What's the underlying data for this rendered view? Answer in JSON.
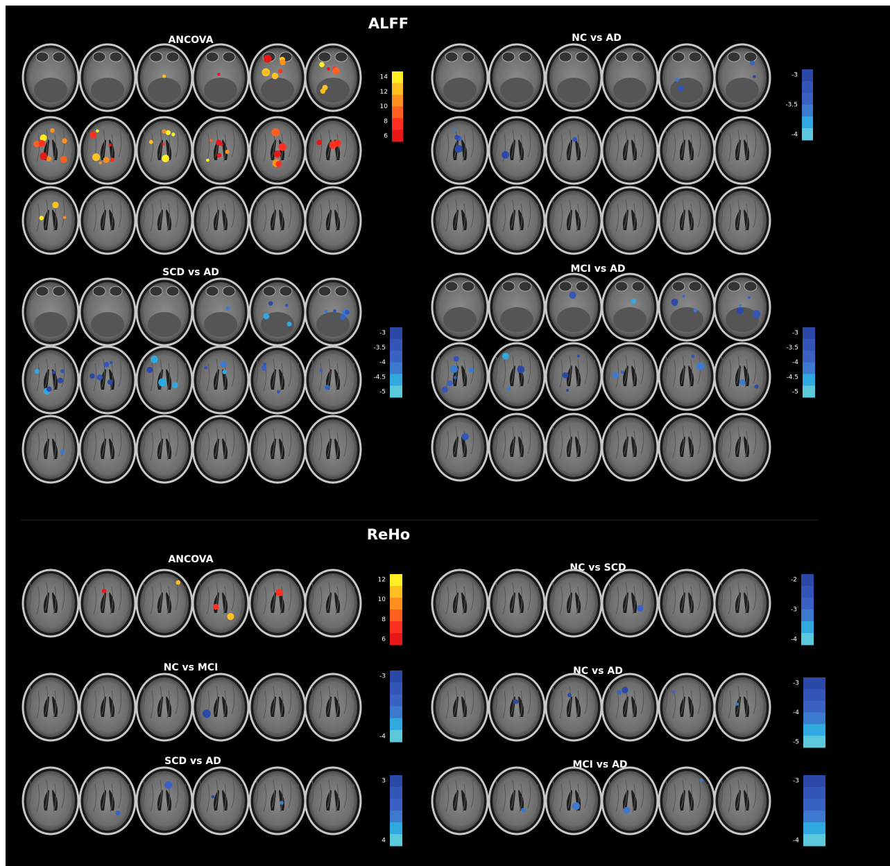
{
  "sections": [
    {
      "title": "ALFF",
      "panels": [
        {
          "title": "ANCOVA",
          "colorbar": [
            "14",
            "12",
            "10",
            "8",
            "6"
          ]
        },
        {
          "title": "NC vs AD",
          "colorbar": [
            "-3",
            "-3.5",
            "-4"
          ]
        },
        {
          "title": "SCD vs AD",
          "colorbar": [
            "-3",
            "-3.5",
            "-4",
            "-4.5",
            "-5"
          ]
        },
        {
          "title": "MCI vs AD",
          "colorbar": [
            "-3",
            "-3.5",
            "-4",
            "-4.5",
            "-5"
          ]
        }
      ]
    },
    {
      "title": "ReHo",
      "panels": [
        {
          "title": "ANCOVA",
          "colorbar": [
            "12",
            "10",
            "8",
            "6"
          ]
        },
        {
          "title": "NC vs SCD",
          "colorbar": [
            "-2",
            "-3",
            "-4"
          ]
        },
        {
          "title": "NC vs MCI",
          "colorbar": [
            "-3",
            "-4"
          ]
        },
        {
          "title": "NC vs AD",
          "colorbar": [
            "-3",
            "-4",
            "-5"
          ]
        },
        {
          "title": "SCD vs AD",
          "colorbar": [
            "3",
            "4"
          ]
        },
        {
          "title": "MCI vs AD",
          "colorbar": [
            "-3",
            "-4"
          ]
        }
      ]
    }
  ]
}
